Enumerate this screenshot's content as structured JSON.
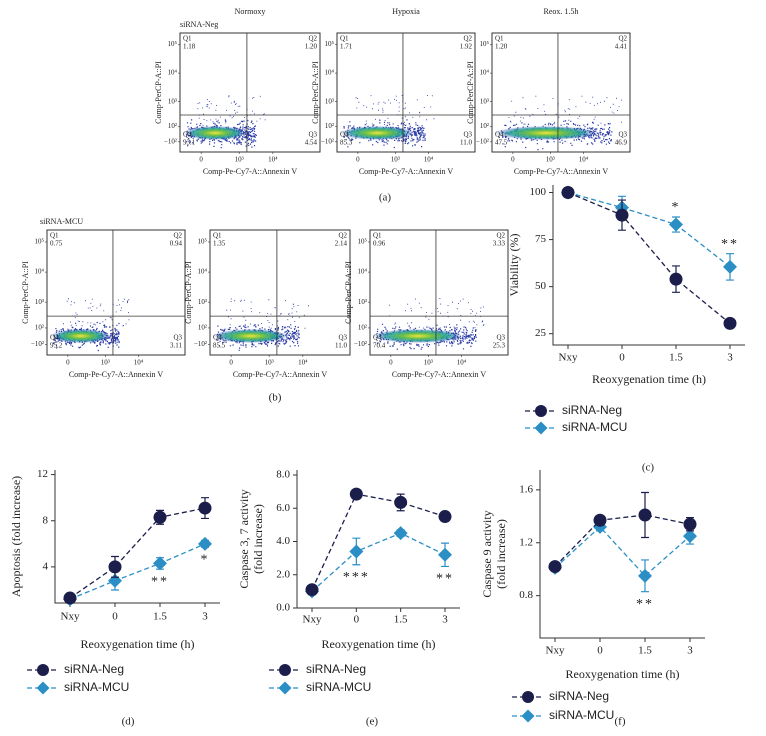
{
  "panel_labels": [
    "(a)",
    "(b)",
    "(c)",
    "(d)",
    "(e)",
    "(f)"
  ],
  "row_labels": [
    "siRNA-Neg",
    "siRNA-MCU"
  ],
  "chart_data": [
    {
      "type": "flow",
      "title": "Normoxy",
      "x_label": "Comp-Pe-Cy7-A::Annexin V",
      "y_label": "Comp-PerCP-A::PI",
      "xscale": "biexponential",
      "yscale": "biexponential",
      "xlim": [
        -300,
        250000
      ],
      "ylim": [
        -300,
        250000
      ],
      "xticks": [
        0,
        {
          "value": 1000,
          "label": "10³"
        },
        {
          "value": 10000,
          "label": "10⁴"
        }
      ],
      "yticks": [
        {
          "value": -100,
          "label": "−10²"
        },
        {
          "value": 100,
          "label": "10²"
        },
        {
          "value": 1000,
          "label": "10³"
        },
        {
          "value": 10000,
          "label": "10⁴"
        },
        {
          "value": 100000,
          "label": "10⁵"
        }
      ],
      "gates": {
        "x": 1700,
        "y": 330
      },
      "quadrants": [
        "Q1",
        "Q2",
        "Q3",
        "Q4"
      ],
      "values": [
        1.18,
        1.2,
        4.54,
        93.1
      ],
      "value_labels": [
        "1.18",
        "1.20",
        "4.54",
        "93.1"
      ]
    },
    {
      "type": "flow",
      "title": "Hypoxia",
      "x_label": "Comp-Pe-Cy7-A::Annexin V",
      "y_label": "Comp-PerCP-A::PI",
      "xscale": "biexponential",
      "yscale": "biexponential",
      "xlim": [
        -300,
        250000
      ],
      "ylim": [
        -300,
        250000
      ],
      "xticks": [
        0,
        {
          "value": 1000,
          "label": "10³"
        },
        {
          "value": 10000,
          "label": "10⁴"
        }
      ],
      "yticks": [
        {
          "value": -100,
          "label": "−10²"
        },
        {
          "value": 100,
          "label": "10²"
        },
        {
          "value": 1000,
          "label": "10³"
        },
        {
          "value": 10000,
          "label": "10⁴"
        },
        {
          "value": 100000,
          "label": "10⁵"
        }
      ],
      "gates": {
        "x": 1700,
        "y": 330
      },
      "quadrants": [
        "Q1",
        "Q2",
        "Q3",
        "Q4"
      ],
      "values": [
        1.71,
        1.92,
        11.0,
        85.3
      ],
      "value_labels": [
        "1.71",
        "1.92",
        "11.0",
        "85.3"
      ]
    },
    {
      "type": "flow",
      "title": "Reox. 1.5h",
      "x_label": "Comp-Pe-Cy7-A::Annexin V",
      "y_label": "Comp-PerCP-A::PI",
      "xscale": "biexponential",
      "yscale": "biexponential",
      "xlim": [
        -300,
        250000
      ],
      "ylim": [
        -300,
        250000
      ],
      "xticks": [
        0,
        {
          "value": 1000,
          "label": "10³"
        },
        {
          "value": 10000,
          "label": "10⁴"
        }
      ],
      "yticks": [
        {
          "value": -100,
          "label": "−10²"
        },
        {
          "value": 100,
          "label": "10²"
        },
        {
          "value": 1000,
          "label": "10³"
        },
        {
          "value": 10000,
          "label": "10⁴"
        },
        {
          "value": 100000,
          "label": "10⁵"
        }
      ],
      "gates": {
        "x": 1700,
        "y": 330
      },
      "quadrants": [
        "Q1",
        "Q2",
        "Q3",
        "Q4"
      ],
      "values": [
        1.2,
        4.41,
        46.9,
        47.5
      ],
      "value_labels": [
        "1.20",
        "4.41",
        "46.9",
        "47.5"
      ]
    },
    {
      "type": "flow",
      "x_label": "Comp-Pe-Cy7-A::Annexin V",
      "y_label": "Comp-PerCP-A::PI",
      "xscale": "biexponential",
      "yscale": "biexponential",
      "xlim": [
        -300,
        250000
      ],
      "ylim": [
        -300,
        250000
      ],
      "xticks": [
        0,
        {
          "value": 1000,
          "label": "10³"
        },
        {
          "value": 10000,
          "label": "10⁴"
        }
      ],
      "yticks": [
        {
          "value": -100,
          "label": "−10²"
        },
        {
          "value": 100,
          "label": "10²"
        },
        {
          "value": 1000,
          "label": "10³"
        },
        {
          "value": 10000,
          "label": "10⁴"
        },
        {
          "value": 100000,
          "label": "10⁵"
        }
      ],
      "gates": {
        "x": 1700,
        "y": 330
      },
      "quadrants": [
        "Q1",
        "Q2",
        "Q3",
        "Q4"
      ],
      "values": [
        0.75,
        0.94,
        3.11,
        95.2
      ],
      "value_labels": [
        "0.75",
        "0.94",
        "3.11",
        "95.2"
      ]
    },
    {
      "type": "flow",
      "x_label": "Comp-Pe-Cy7-A::Annexin V",
      "y_label": "Comp-PerCP-A::PI",
      "xscale": "biexponential",
      "yscale": "biexponential",
      "xlim": [
        -300,
        250000
      ],
      "ylim": [
        -300,
        250000
      ],
      "xticks": [
        0,
        {
          "value": 1000,
          "label": "10³"
        },
        {
          "value": 10000,
          "label": "10⁴"
        }
      ],
      "yticks": [
        {
          "value": -100,
          "label": "−10²"
        },
        {
          "value": 100,
          "label": "10²"
        },
        {
          "value": 1000,
          "label": "10³"
        },
        {
          "value": 10000,
          "label": "10⁴"
        },
        {
          "value": 100000,
          "label": "10⁵"
        }
      ],
      "gates": {
        "x": 1700,
        "y": 330
      },
      "quadrants": [
        "Q1",
        "Q2",
        "Q3",
        "Q4"
      ],
      "values": [
        1.35,
        2.14,
        11.0,
        85.5
      ],
      "value_labels": [
        "1.35",
        "2.14",
        "11.0",
        "85.5"
      ]
    },
    {
      "type": "flow",
      "x_label": "Comp-Pe-Cy7-A::Annexin V",
      "y_label": "Comp-PerCP-A::PI",
      "xscale": "biexponential",
      "yscale": "biexponential",
      "xlim": [
        -300,
        250000
      ],
      "ylim": [
        -300,
        250000
      ],
      "xticks": [
        0,
        {
          "value": 1000,
          "label": "10³"
        },
        {
          "value": 10000,
          "label": "10⁴"
        }
      ],
      "yticks": [
        {
          "value": -100,
          "label": "−10²"
        },
        {
          "value": 100,
          "label": "10²"
        },
        {
          "value": 1000,
          "label": "10³"
        },
        {
          "value": 10000,
          "label": "10⁴"
        },
        {
          "value": 100000,
          "label": "10⁵"
        }
      ],
      "gates": {
        "x": 1700,
        "y": 330
      },
      "quadrants": [
        "Q1",
        "Q2",
        "Q3",
        "Q4"
      ],
      "values": [
        0.96,
        3.33,
        25.3,
        70.4
      ],
      "value_labels": [
        "0.96",
        "3.33",
        "25.3",
        "70.4"
      ]
    },
    {
      "type": "line",
      "y_label": [
        "Viability (%)"
      ],
      "x_label": "Reoxygenation time (h)",
      "categories": [
        "Nxy",
        "0",
        "1.5",
        "3"
      ],
      "ylim": [
        19,
        104
      ],
      "yticks": [
        25,
        50,
        75,
        100
      ],
      "series": [
        {
          "name": "siRNA-Neg",
          "color": "#1b1e4b",
          "marker": "circle",
          "values": [
            100,
            88,
            54,
            30.5
          ],
          "errors": [
            0,
            8,
            7,
            1
          ]
        },
        {
          "name": "siRNA-MCU",
          "color": "#2b8fc5",
          "marker": "diamond",
          "values": [
            100,
            92,
            83,
            60.5
          ],
          "errors": [
            0,
            6,
            4,
            7
          ]
        }
      ],
      "annotations": [
        {
          "text": "*",
          "x": "1.5"
        },
        {
          "text": "**",
          "x": "3"
        }
      ]
    },
    {
      "type": "line",
      "y_label": [
        "Apoptosis (fold increase)"
      ],
      "x_label": "Reoxygenation time (h)",
      "categories": [
        "Nxy",
        "0",
        "1.5",
        "3"
      ],
      "ylim": [
        0.87,
        12.4
      ],
      "yticks": [
        4,
        8,
        12
      ],
      "series": [
        {
          "name": "siRNA-Neg",
          "color": "#1b1e4b",
          "marker": "circle",
          "values": [
            1.3,
            4.0,
            8.3,
            9.1
          ],
          "errors": [
            0.3,
            0.9,
            0.6,
            0.9
          ]
        },
        {
          "name": "siRNA-MCU",
          "color": "#2b8fc5",
          "marker": "diamond",
          "values": [
            1.2,
            2.8,
            4.3,
            6.0
          ],
          "errors": [
            0.2,
            0.8,
            0.5,
            0.3
          ]
        }
      ],
      "annotations": [
        {
          "text": "**",
          "x": "1.5"
        },
        {
          "text": "*",
          "x": "3"
        }
      ]
    },
    {
      "type": "line",
      "y_label": [
        "Caspase 3, 7 activity",
        "(fold increase)"
      ],
      "x_label": "Reoxygenation time (h)",
      "categories": [
        "Nxy",
        "0",
        "1.5",
        "3"
      ],
      "ylim": [
        0,
        8.3
      ],
      "yticks": [
        {
          "value": 0,
          "label": "0.0"
        },
        {
          "value": 2,
          "label": "2.0"
        },
        {
          "value": 4,
          "label": "4.0"
        },
        {
          "value": 6,
          "label": "6.0"
        },
        {
          "value": 8,
          "label": "8.0"
        }
      ],
      "series": [
        {
          "name": "siRNA-Neg",
          "color": "#1b1e4b",
          "marker": "circle",
          "values": [
            1.1,
            6.85,
            6.35,
            5.5
          ],
          "errors": [
            0.2,
            0.15,
            0.5,
            0.2
          ]
        },
        {
          "name": "siRNA-MCU",
          "color": "#2b8fc5",
          "marker": "diamond",
          "values": [
            1.0,
            3.4,
            4.5,
            3.2
          ],
          "errors": [
            0.2,
            0.8,
            0.2,
            0.7
          ]
        }
      ],
      "annotations": [
        {
          "text": "***",
          "x": "0"
        },
        {
          "text": "**",
          "x": "3"
        }
      ]
    },
    {
      "type": "line",
      "y_label": [
        "Caspase 9 activity",
        "(fold increase)"
      ],
      "x_label": "Reoxygenation time (h)",
      "categories": [
        "Nxy",
        "0",
        "1.5",
        "3"
      ],
      "ylim": [
        0.48,
        1.75
      ],
      "yticks": [
        0.8,
        1.2,
        1.6
      ],
      "series": [
        {
          "name": "siRNA-Neg",
          "color": "#1b1e4b",
          "marker": "circle",
          "values": [
            1.02,
            1.37,
            1.41,
            1.34
          ],
          "errors": [
            0.02,
            0.03,
            0.17,
            0.05
          ]
        },
        {
          "name": "siRNA-MCU",
          "color": "#2b8fc5",
          "marker": "diamond",
          "values": [
            1.01,
            1.32,
            0.95,
            1.25
          ],
          "errors": [
            0.02,
            0.03,
            0.12,
            0.06
          ]
        }
      ],
      "annotations": [
        {
          "text": "**",
          "x": "1.5"
        }
      ]
    }
  ]
}
